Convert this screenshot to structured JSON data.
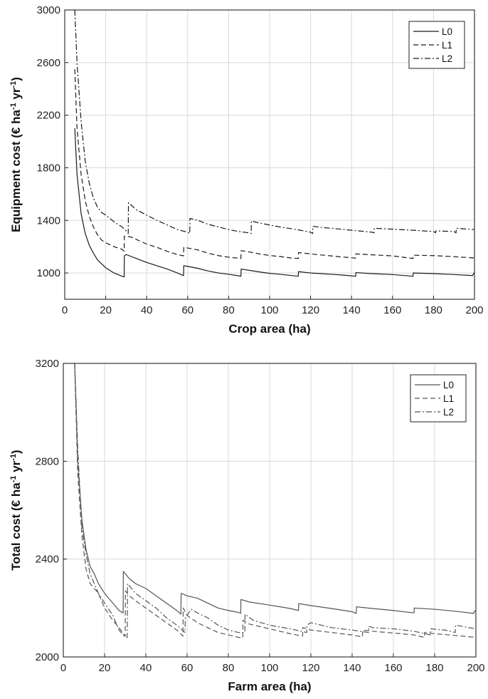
{
  "chart_data": [
    {
      "type": "line",
      "xlabel": "Crop area (ha)",
      "ylabel_main": "Equipment cost (€ ha",
      "ylabel_sup1": "-1",
      "ylabel_mid": " yr",
      "ylabel_sup2": "-1",
      "ylabel_end": ")",
      "xlim": [
        0,
        200
      ],
      "ylim": [
        800,
        3000
      ],
      "xticks": [
        0,
        20,
        40,
        60,
        80,
        100,
        120,
        140,
        160,
        180,
        200
      ],
      "yticks": [
        1000,
        1400,
        1800,
        2200,
        2600,
        3000
      ],
      "grid": true,
      "legend_position": "top-right",
      "series": [
        {
          "name": "L0",
          "style": "solid",
          "color": "#1a1a1a",
          "x": [
            4.9,
            6,
            8,
            10,
            12,
            14,
            16,
            18,
            20,
            24,
            28,
            29,
            29.1,
            30,
            35,
            40,
            45,
            50,
            55,
            58,
            58.1,
            60,
            65,
            70,
            75,
            80,
            85,
            86,
            86.1,
            90,
            95,
            100,
            105,
            110,
            114,
            114.1,
            120,
            125,
            130,
            135,
            140,
            142,
            142.1,
            150,
            160,
            170,
            170.1,
            180,
            190,
            199,
            200
          ],
          "y": [
            2100,
            1750,
            1450,
            1300,
            1210,
            1150,
            1100,
            1070,
            1040,
            1000,
            975,
            970,
            1130,
            1140,
            1110,
            1080,
            1055,
            1030,
            1000,
            980,
            1055,
            1050,
            1035,
            1015,
            1000,
            990,
            978,
            975,
            1030,
            1020,
            1008,
            997,
            990,
            982,
            975,
            1010,
            1000,
            995,
            990,
            985,
            978,
            975,
            1003,
            995,
            988,
            975,
            1000,
            995,
            988,
            980,
            1005
          ]
        },
        {
          "name": "L1",
          "style": "dashed",
          "color": "#1a1a1a",
          "x": [
            4.9,
            6,
            8,
            10,
            12,
            14,
            16,
            18,
            20,
            24,
            28,
            29,
            29.1,
            32,
            35,
            40,
            45,
            50,
            55,
            58,
            58.1,
            60,
            65,
            70,
            75,
            80,
            85,
            86,
            86.1,
            90,
            95,
            100,
            105,
            110,
            114,
            114.1,
            120,
            125,
            130,
            135,
            140,
            142,
            142.1,
            150,
            160,
            170,
            170.1,
            180,
            190,
            199,
            200
          ],
          "y": [
            2550,
            2100,
            1750,
            1550,
            1430,
            1350,
            1290,
            1250,
            1230,
            1200,
            1180,
            1165,
            1280,
            1275,
            1255,
            1220,
            1195,
            1165,
            1140,
            1130,
            1195,
            1190,
            1175,
            1150,
            1132,
            1120,
            1112,
            1110,
            1170,
            1160,
            1145,
            1133,
            1125,
            1115,
            1110,
            1155,
            1145,
            1137,
            1130,
            1122,
            1116,
            1112,
            1145,
            1138,
            1130,
            1110,
            1135,
            1132,
            1124,
            1115,
            1115
          ]
        },
        {
          "name": "L2",
          "style": "dashdot",
          "color": "#1a1a1a",
          "x": [
            4.9,
            6,
            8,
            10,
            12,
            14,
            16,
            18,
            20,
            24,
            28,
            30,
            31,
            31.1,
            35,
            40,
            45,
            50,
            55,
            60,
            61,
            61.1,
            65,
            70,
            75,
            80,
            85,
            90,
            91,
            91.1,
            95,
            100,
            105,
            110,
            115,
            120,
            121,
            121.1,
            125,
            130,
            140,
            150,
            151,
            151.1,
            160,
            170,
            180,
            181,
            181.1,
            190,
            191,
            191.1,
            200
          ],
          "y": [
            3000,
            2600,
            2150,
            1850,
            1680,
            1570,
            1500,
            1460,
            1440,
            1390,
            1350,
            1320,
            1300,
            1535,
            1480,
            1440,
            1400,
            1365,
            1330,
            1310,
            1300,
            1415,
            1400,
            1370,
            1350,
            1330,
            1315,
            1305,
            1300,
            1395,
            1380,
            1365,
            1350,
            1338,
            1325,
            1310,
            1300,
            1355,
            1347,
            1340,
            1325,
            1310,
            1305,
            1340,
            1333,
            1325,
            1315,
            1305,
            1320,
            1315,
            1305,
            1340,
            1330
          ]
        }
      ]
    },
    {
      "type": "line",
      "xlabel": "Farm area (ha)",
      "ylabel_main": "Total cost (€ ha",
      "ylabel_sup1": "-1",
      "ylabel_mid": " yr",
      "ylabel_sup2": "-1",
      "ylabel_end": ")",
      "xlim": [
        0,
        200
      ],
      "ylim": [
        2000,
        3200
      ],
      "xticks": [
        0,
        20,
        40,
        60,
        80,
        100,
        120,
        140,
        160,
        180,
        200
      ],
      "yticks": [
        2000,
        2400,
        2800,
        3200
      ],
      "grid": true,
      "legend_position": "top-right",
      "series": [
        {
          "name": "L0",
          "style": "solid",
          "color": "#555555",
          "x": [
            5.5,
            7,
            9,
            11,
            13,
            15,
            17,
            20,
            24,
            27,
            29,
            29.1,
            32,
            35,
            40,
            45,
            50,
            55,
            57,
            57.1,
            60,
            65,
            70,
            75,
            80,
            85,
            86,
            86.1,
            90,
            100,
            110,
            114,
            114.1,
            120,
            130,
            140,
            142,
            142.1,
            150,
            160,
            170,
            170.1,
            180,
            190,
            199,
            199.1,
            200
          ],
          "y": [
            3200,
            2800,
            2560,
            2440,
            2370,
            2340,
            2300,
            2260,
            2220,
            2190,
            2180,
            2350,
            2320,
            2300,
            2280,
            2250,
            2220,
            2190,
            2175,
            2260,
            2250,
            2240,
            2220,
            2200,
            2190,
            2182,
            2178,
            2235,
            2225,
            2212,
            2198,
            2190,
            2218,
            2210,
            2198,
            2185,
            2178,
            2205,
            2198,
            2190,
            2180,
            2200,
            2195,
            2187,
            2178,
            2185,
            2190
          ]
        },
        {
          "name": "L1",
          "style": "dashed",
          "color": "#555555",
          "x": [
            5.5,
            7,
            9,
            11,
            13,
            15,
            17,
            20,
            24,
            27,
            30,
            30.1,
            32,
            35,
            40,
            45,
            50,
            55,
            58,
            58.1,
            60,
            65,
            70,
            75,
            80,
            85,
            87,
            87.1,
            90,
            100,
            110,
            116,
            116.1,
            120,
            130,
            140,
            145,
            145.1,
            150,
            160,
            170,
            175,
            175.1,
            180,
            190,
            200
          ],
          "y": [
            3200,
            2750,
            2500,
            2360,
            2300,
            2280,
            2260,
            2200,
            2150,
            2120,
            2085,
            2270,
            2250,
            2230,
            2200,
            2170,
            2140,
            2110,
            2085,
            2200,
            2170,
            2140,
            2120,
            2100,
            2090,
            2080,
            2078,
            2150,
            2135,
            2115,
            2095,
            2085,
            2120,
            2110,
            2100,
            2090,
            2082,
            2110,
            2105,
            2098,
            2090,
            2080,
            2100,
            2095,
            2088,
            2080
          ]
        },
        {
          "name": "L2",
          "style": "dashdot",
          "color": "#555555",
          "x": [
            5.5,
            7,
            9,
            11,
            13,
            15,
            17,
            20,
            24,
            27,
            29,
            30,
            31,
            31.1,
            35,
            40,
            45,
            50,
            55,
            59,
            59.1,
            62,
            65,
            70,
            75,
            80,
            85,
            88,
            88.1,
            92,
            100,
            110,
            118,
            118.1,
            120,
            130,
            140,
            148,
            148.1,
            150,
            160,
            170,
            178,
            178.1,
            185,
            190,
            190.1,
            200
          ],
          "y": [
            3200,
            2850,
            2530,
            2420,
            2340,
            2300,
            2260,
            2220,
            2170,
            2110,
            2090,
            2082,
            2080,
            2300,
            2260,
            2230,
            2200,
            2160,
            2130,
            2100,
            2160,
            2195,
            2180,
            2160,
            2130,
            2110,
            2100,
            2100,
            2175,
            2150,
            2130,
            2115,
            2100,
            2130,
            2140,
            2120,
            2110,
            2100,
            2125,
            2120,
            2115,
            2105,
            2090,
            2115,
            2110,
            2100,
            2130,
            2115
          ]
        }
      ]
    }
  ]
}
